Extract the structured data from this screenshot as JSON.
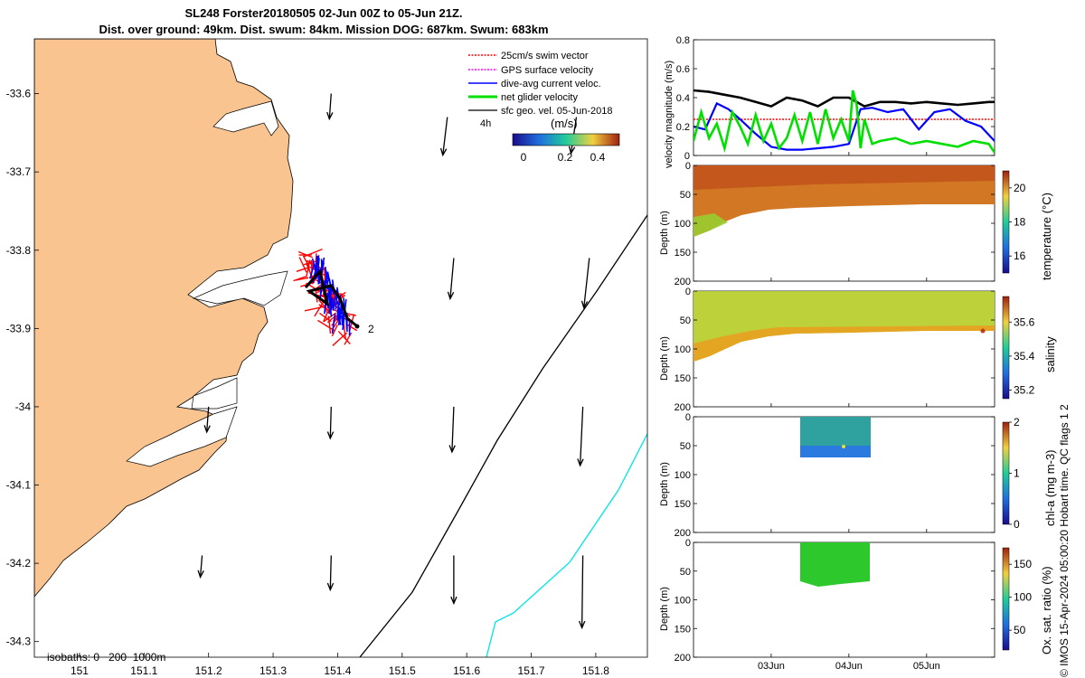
{
  "title": {
    "line1": "SL248 Forster20180505 02-Jun 00Z to 05-Jun 21Z.",
    "line2": "Dist. over ground: 49km. Dist. swum: 84km. Mission DOG: 687km. Swum: 683km"
  },
  "footer": "© IMOS 15-Apr-2024 05:00:20 Hobart time. QC flags 1  2",
  "colors": {
    "land": "#f9c48f",
    "swim": "#ff0000",
    "gps": "#ff00ff",
    "dive_avg": "#0000ff",
    "net_glider": "#00e000",
    "surface_geostrophic": "#000000",
    "isobath_200": "#000000",
    "isobath_1000": "#00e5e5"
  },
  "chart_data": [
    {
      "type": "map",
      "xlim": [
        150.93,
        151.88
      ],
      "ylim": [
        -34.32,
        -33.53
      ],
      "xticks": [
        "151",
        "151.1",
        "151.2",
        "151.3",
        "151.4",
        "151.5",
        "151.6",
        "151.7",
        "151.8"
      ],
      "yticks": [
        "-33.6",
        "-33.7",
        "-33.8",
        "-33.9",
        "-34",
        "-34.1",
        "-34.2",
        "-34.3"
      ],
      "legend": {
        "position": "top-right",
        "entries": [
          "25cm/s swim vector",
          "GPS surface velocity",
          "dive-avg current veloc.",
          "net glider velocity",
          "sfc geo. vel. 05-Jun-2018"
        ],
        "time_label": "4h"
      },
      "colorbar": {
        "label": "(m/s)",
        "ticks": [
          "0",
          "0.2",
          "0.4"
        ],
        "range": [
          0,
          0.5
        ]
      },
      "isobaths_label": "isobaths: 0   200  1000m",
      "glider_label": "2",
      "geo_arrows": [
        {
          "lon": 151.39,
          "lat": -33.6,
          "u": -0.02,
          "v": -0.28
        },
        {
          "lon": 151.57,
          "lat": -33.63,
          "u": -0.05,
          "v": -0.42
        },
        {
          "lon": 151.77,
          "lat": -33.63,
          "u": -0.06,
          "v": -0.4
        },
        {
          "lon": 151.58,
          "lat": -33.81,
          "u": -0.04,
          "v": -0.45
        },
        {
          "lon": 151.79,
          "lat": -33.81,
          "u": -0.06,
          "v": -0.55
        },
        {
          "lon": 151.2,
          "lat": -34.0,
          "u": -0.02,
          "v": -0.28
        },
        {
          "lon": 151.39,
          "lat": -34.0,
          "u": -0.01,
          "v": -0.35
        },
        {
          "lon": 151.58,
          "lat": -34.0,
          "u": -0.02,
          "v": -0.5
        },
        {
          "lon": 151.78,
          "lat": -34.0,
          "u": -0.03,
          "v": -0.65
        },
        {
          "lon": 151.19,
          "lat": -34.19,
          "u": -0.02,
          "v": -0.24
        },
        {
          "lon": 151.39,
          "lat": -34.19,
          "u": -0.01,
          "v": -0.38
        },
        {
          "lon": 151.58,
          "lat": -34.19,
          "u": 0.0,
          "v": -0.53
        },
        {
          "lon": 151.78,
          "lat": -34.19,
          "u": -0.01,
          "v": -0.8
        }
      ]
    },
    {
      "type": "line",
      "ylabel": "velocity magnitude (m/s)",
      "ylim": [
        0,
        0.8
      ],
      "yticks": [
        "0",
        "0.2",
        "0.4",
        "0.6",
        "0.8"
      ],
      "x_day_range": [
        2.0,
        5.875
      ],
      "series": [
        {
          "key": "surface_geostrophic",
          "t": [
            2.0,
            2.2,
            2.4,
            2.6,
            2.8,
            3.0,
            3.2,
            3.4,
            3.6,
            3.8,
            4.0,
            4.2,
            4.4,
            4.6,
            4.8,
            5.0,
            5.2,
            5.4,
            5.6,
            5.8,
            5.875
          ],
          "values": [
            0.45,
            0.44,
            0.42,
            0.4,
            0.37,
            0.34,
            0.4,
            0.38,
            0.34,
            0.4,
            0.4,
            0.34,
            0.37,
            0.37,
            0.36,
            0.37,
            0.36,
            0.35,
            0.36,
            0.37,
            0.37
          ]
        },
        {
          "key": "swim",
          "t": [
            2.0,
            5.875
          ],
          "values": [
            0.25,
            0.25
          ]
        },
        {
          "key": "dive_avg",
          "t": [
            2.0,
            2.15,
            2.3,
            2.45,
            2.6,
            2.8,
            3.0,
            3.2,
            3.4,
            3.6,
            3.8,
            4.0,
            4.15,
            4.3,
            4.5,
            4.7,
            4.9,
            5.1,
            5.3,
            5.5,
            5.7,
            5.875
          ],
          "values": [
            0.2,
            0.18,
            0.36,
            0.32,
            0.25,
            0.15,
            0.06,
            0.04,
            0.04,
            0.05,
            0.06,
            0.08,
            0.32,
            0.33,
            0.3,
            0.32,
            0.18,
            0.3,
            0.32,
            0.24,
            0.2,
            0.1
          ]
        },
        {
          "key": "net_glider",
          "t": [
            2.0,
            2.1,
            2.2,
            2.3,
            2.4,
            2.5,
            2.6,
            2.7,
            2.8,
            2.9,
            3.0,
            3.1,
            3.2,
            3.3,
            3.4,
            3.5,
            3.6,
            3.7,
            3.8,
            3.9,
            4.0,
            4.05,
            4.1,
            4.15,
            4.2,
            4.3,
            4.4,
            4.6,
            4.8,
            5.0,
            5.2,
            5.4,
            5.6,
            5.8,
            5.875
          ],
          "values": [
            0.1,
            0.3,
            0.12,
            0.22,
            0.05,
            0.3,
            0.2,
            0.08,
            0.28,
            0.1,
            0.22,
            0.05,
            0.12,
            0.28,
            0.1,
            0.3,
            0.08,
            0.32,
            0.12,
            0.25,
            0.1,
            0.45,
            0.35,
            0.05,
            0.25,
            0.08,
            0.1,
            0.12,
            0.08,
            0.1,
            0.08,
            0.06,
            0.1,
            0.08,
            0.02
          ]
        }
      ]
    },
    {
      "type": "heatmap",
      "ylabel": "Depth (m)",
      "colorbar_label": "temperature (°C)",
      "clim": [
        15,
        21
      ],
      "cticks": [
        "16",
        "18",
        "20"
      ],
      "yticks": [
        "0",
        "50",
        "100",
        "150",
        "200"
      ],
      "ylim": [
        200,
        0
      ]
    },
    {
      "type": "heatmap",
      "ylabel": "Depth (m)",
      "colorbar_label": "salinity",
      "clim": [
        35.15,
        35.75
      ],
      "cticks": [
        "35.2",
        "35.4",
        "35.6"
      ],
      "yticks": [
        "0",
        "50",
        "100",
        "150",
        "200"
      ],
      "ylim": [
        200,
        0
      ]
    },
    {
      "type": "heatmap",
      "ylabel": "Depth (m)",
      "colorbar_label": "chl-a (mg m-3)",
      "clim": [
        0,
        2
      ],
      "cticks": [
        "0",
        "1",
        "2"
      ],
      "yticks": [
        "0",
        "50",
        "100",
        "150",
        "200"
      ],
      "ylim": [
        200,
        0
      ]
    },
    {
      "type": "heatmap",
      "ylabel": "Depth (m)",
      "colorbar_label": "Ox. sat. ratio (%)",
      "clim": [
        20,
        175
      ],
      "cticks": [
        "50",
        "100",
        "150"
      ],
      "yticks": [
        "0",
        "50",
        "100",
        "150",
        "200"
      ],
      "ylim": [
        200,
        0
      ],
      "xticks": [
        "03Jun",
        "04Jun",
        "05Jun"
      ]
    }
  ]
}
